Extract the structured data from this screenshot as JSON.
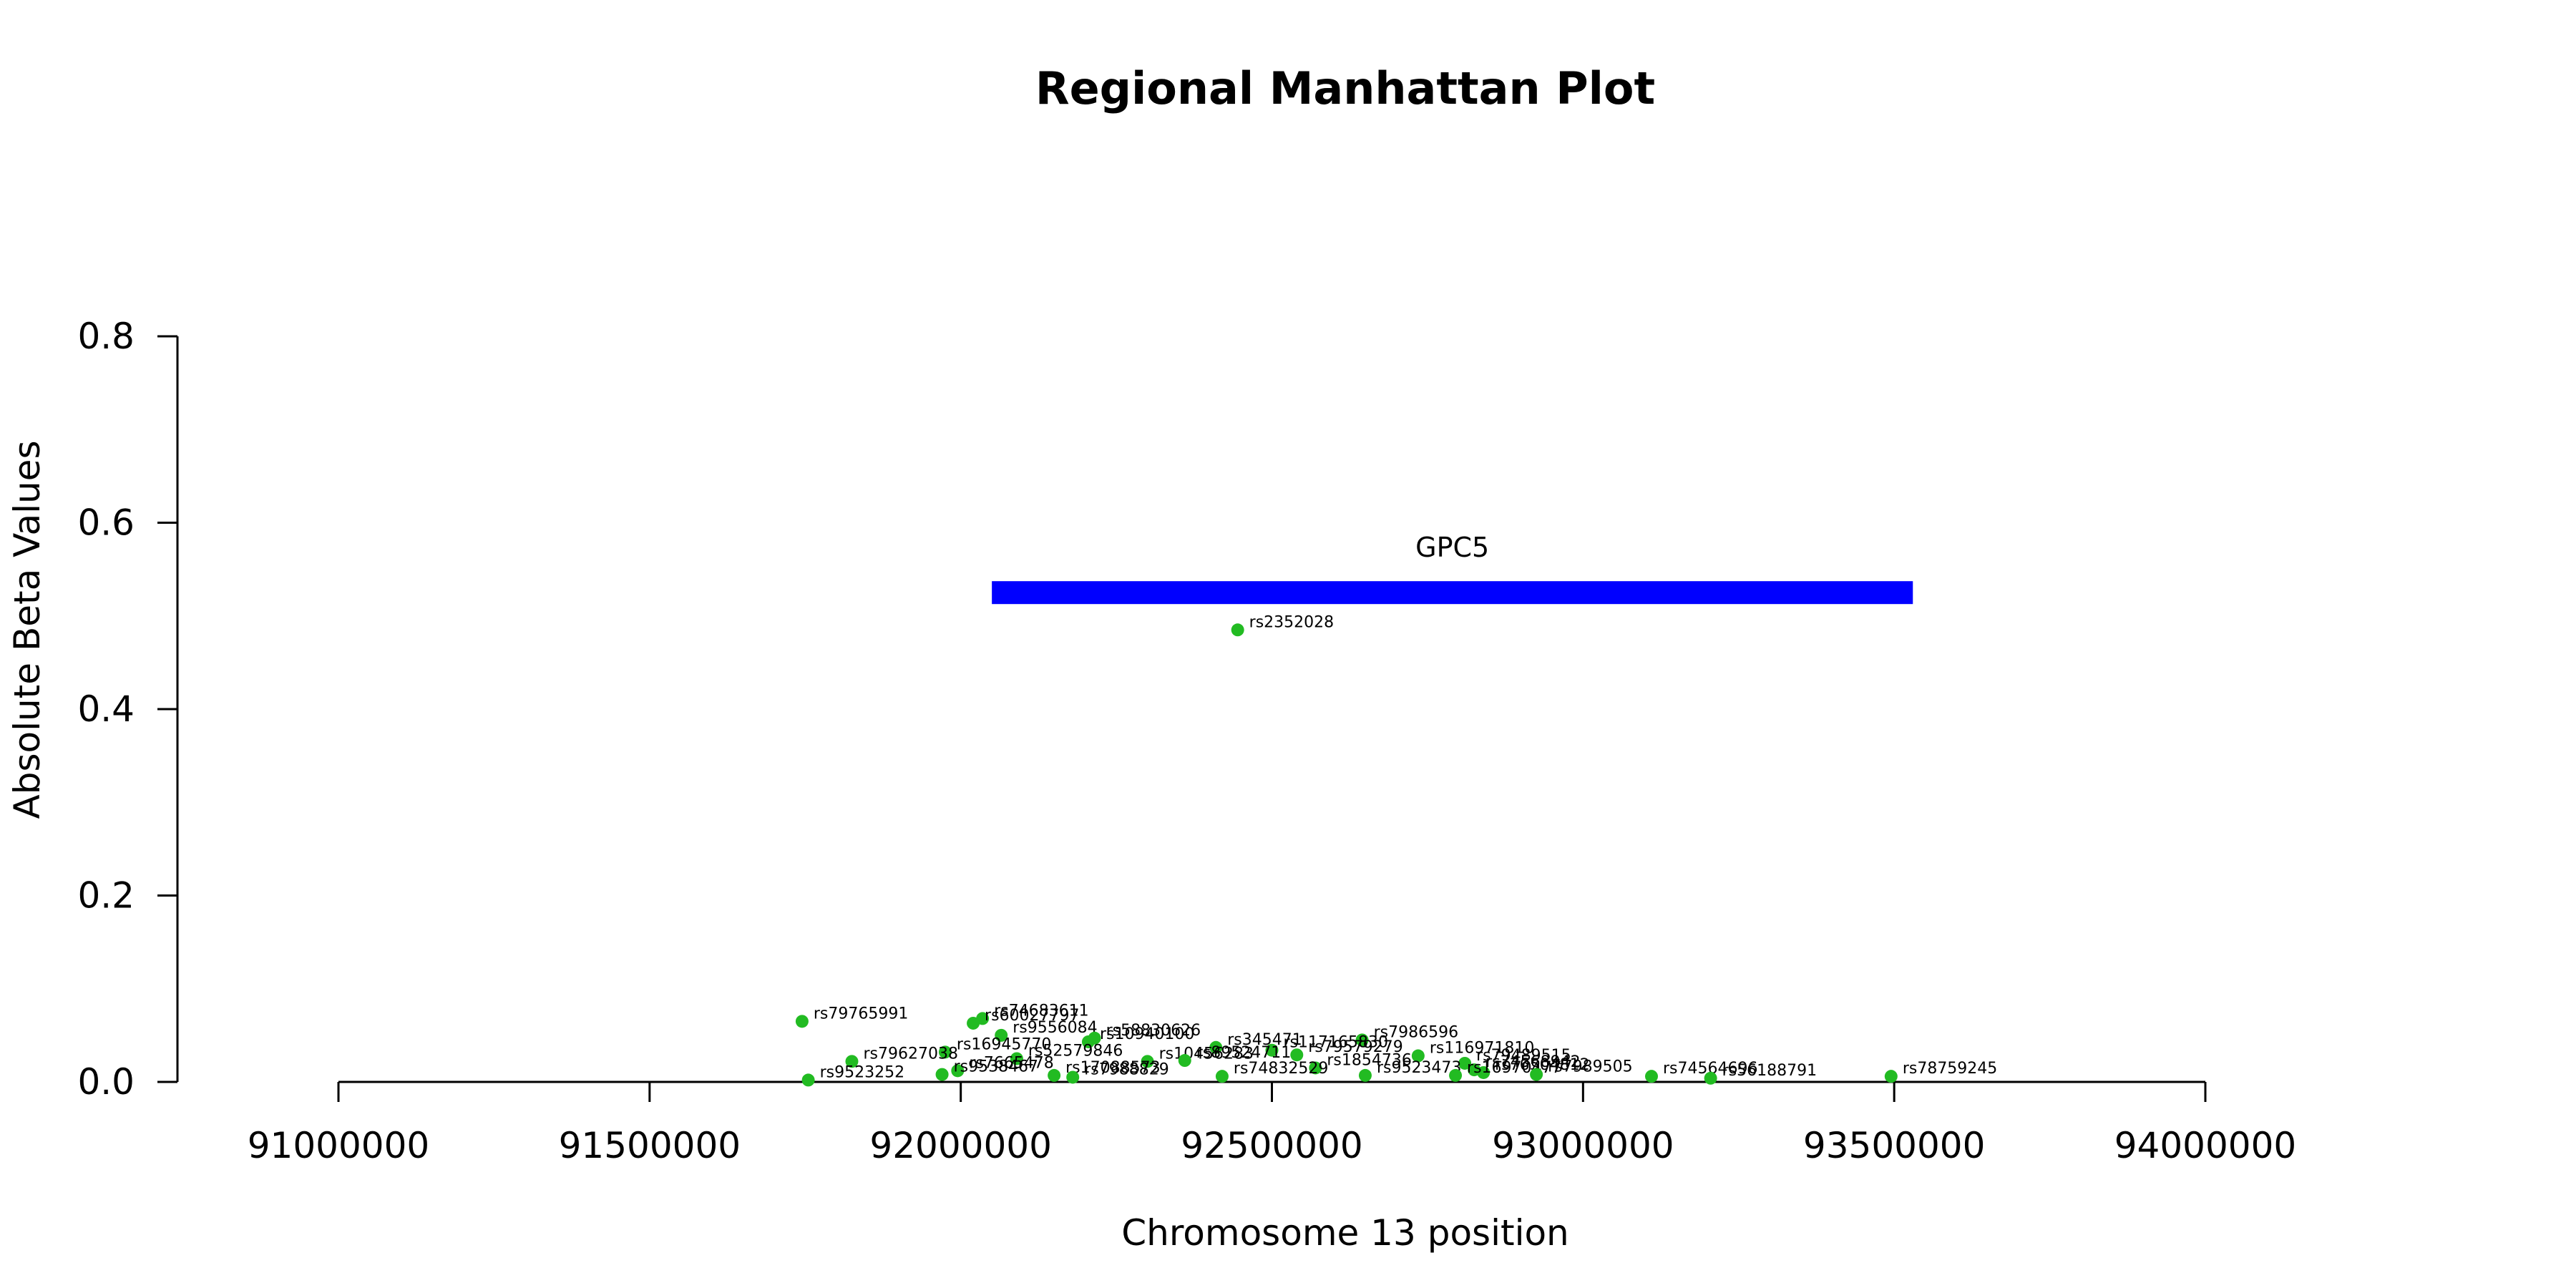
{
  "chart_data": {
    "type": "scatter",
    "title": "Regional Manhattan Plot",
    "xlabel": "Chromosome 13 position",
    "ylabel": "Absolute Beta Values",
    "xlim": [
      91000000,
      94000000
    ],
    "ylim": [
      0,
      0.8
    ],
    "xticks": [
      "91000000",
      "91500000",
      "92000000",
      "92500000",
      "93000000",
      "93500000",
      "94000000"
    ],
    "yticks": [
      "0.0",
      "0.2",
      "0.4",
      "0.6",
      "0.8"
    ],
    "point_color": "#22bb22",
    "gene_color": "#0000ff",
    "gene": {
      "name": "GPC5",
      "start": 92050000,
      "end": 93530000,
      "y": 0.525
    },
    "points": [
      {
        "label": "rs2352028",
        "x": 92445000,
        "y": 0.485
      },
      {
        "label": "rs79765991",
        "x": 91745000,
        "y": 0.065
      },
      {
        "label": "rs74683611",
        "x": 92035000,
        "y": 0.068
      },
      {
        "label": "rs60027797",
        "x": 92020000,
        "y": 0.063
      },
      {
        "label": "rs9556084",
        "x": 92065000,
        "y": 0.05
      },
      {
        "label": "rs58830626",
        "x": 92215000,
        "y": 0.047
      },
      {
        "label": "rs10940100",
        "x": 92205000,
        "y": 0.043
      },
      {
        "label": "rs7986596",
        "x": 92645000,
        "y": 0.045
      },
      {
        "label": "rs345471",
        "x": 92410000,
        "y": 0.037
      },
      {
        "label": "rs117165830",
        "x": 92500000,
        "y": 0.034
      },
      {
        "label": "rs79579279",
        "x": 92540000,
        "y": 0.029
      },
      {
        "label": "rs16945770",
        "x": 91975000,
        "y": 0.032
      },
      {
        "label": "rs116971810",
        "x": 92735000,
        "y": 0.028
      },
      {
        "label": "rs79627038",
        "x": 91825000,
        "y": 0.022
      },
      {
        "label": "rs79489515",
        "x": 92810000,
        "y": 0.02
      },
      {
        "label": "rs52579846",
        "x": 92090000,
        "y": 0.025
      },
      {
        "label": "rs10456283",
        "x": 92300000,
        "y": 0.022
      },
      {
        "label": "rs89524711",
        "x": 92360000,
        "y": 0.023
      },
      {
        "label": "rs1854736",
        "x": 92570000,
        "y": 0.015
      },
      {
        "label": "rs74568942",
        "x": 92825000,
        "y": 0.013
      },
      {
        "label": "rs76504812",
        "x": 92840000,
        "y": 0.01
      },
      {
        "label": "rs7665478",
        "x": 91995000,
        "y": 0.012
      },
      {
        "label": "rs9523252",
        "x": 91755000,
        "y": 0.002
      },
      {
        "label": "rs9538467",
        "x": 91970000,
        "y": 0.008
      },
      {
        "label": "rs17088573",
        "x": 92150000,
        "y": 0.007
      },
      {
        "label": "rs7988829",
        "x": 92180000,
        "y": 0.005
      },
      {
        "label": "rs74832529",
        "x": 92420000,
        "y": 0.006
      },
      {
        "label": "rs9523473",
        "x": 92650000,
        "y": 0.007
      },
      {
        "label": "rs16970477",
        "x": 92795000,
        "y": 0.007
      },
      {
        "label": "rs7989505",
        "x": 92925000,
        "y": 0.008
      },
      {
        "label": "rs74564696",
        "x": 93110000,
        "y": 0.006
      },
      {
        "label": "rs56188791",
        "x": 93205000,
        "y": 0.004
      },
      {
        "label": "rs78759245",
        "x": 93495000,
        "y": 0.006
      }
    ]
  }
}
